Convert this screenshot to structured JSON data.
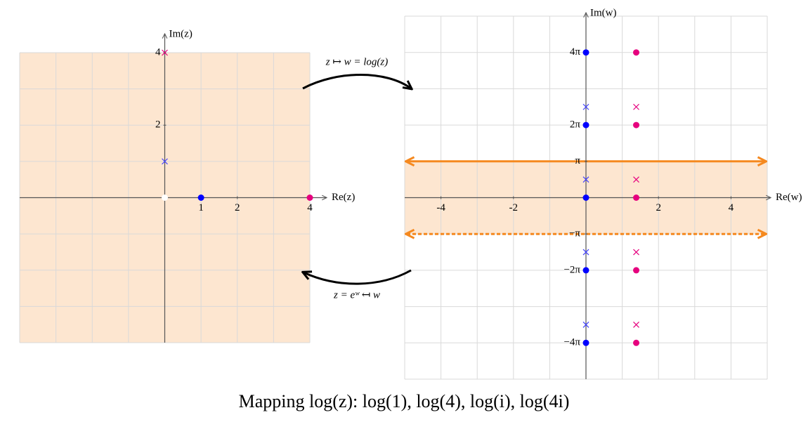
{
  "chart_data": [
    {
      "type": "scatter",
      "axis_labels": {
        "x": "Re(z)",
        "y": "Im(z)"
      },
      "xlim": [
        -4,
        4
      ],
      "ylim": [
        -4,
        4
      ],
      "xticks": [
        1,
        2,
        4
      ],
      "yticks": [
        2,
        4
      ],
      "xgrid": [
        -4,
        -3,
        -2,
        -1,
        0,
        1,
        2,
        3,
        4
      ],
      "ygrid": [
        -4,
        -3,
        -2,
        -1,
        0,
        1,
        2,
        3,
        4
      ],
      "band": [
        -4,
        4
      ],
      "band_color": "#fde6d0",
      "series": [
        {
          "color": "#0000ff",
          "marker": "dot",
          "x": [
            1
          ],
          "values": [
            0
          ]
        },
        {
          "color": "#e6007e",
          "marker": "dot",
          "x": [
            4
          ],
          "values": [
            0
          ]
        },
        {
          "color": "#4040ff",
          "marker": "cross",
          "x": [
            0
          ],
          "values": [
            1
          ]
        },
        {
          "color": "#e6007e",
          "marker": "cross",
          "x": [
            0
          ],
          "values": [
            4
          ]
        },
        {
          "color": "#ffffff",
          "marker": "dot",
          "x": [
            0
          ],
          "values": [
            0
          ]
        }
      ]
    },
    {
      "type": "scatter",
      "axis_labels": {
        "x": "Re(w)",
        "y": "Im(w)"
      },
      "xlim": [
        -5,
        5
      ],
      "ylim": [
        -15.708,
        15.708
      ],
      "xticks": [
        -4,
        -2,
        2,
        4
      ],
      "yticks": [
        {
          "value": 12.566,
          "label": "4π"
        },
        {
          "value": 6.283,
          "label": "2π"
        },
        {
          "value": 3.1416,
          "label": "π"
        },
        {
          "value": -3.1416,
          "label": "−π"
        },
        {
          "value": -6.283,
          "label": "−2π"
        },
        {
          "value": -12.566,
          "label": "−4π"
        }
      ],
      "xgrid": [
        -5,
        -4,
        -3,
        -2,
        -1,
        0,
        1,
        2,
        3,
        4,
        5
      ],
      "ygrid": [
        -15.708,
        -12.566,
        -9.425,
        -6.283,
        -3.1416,
        0,
        3.1416,
        6.283,
        9.425,
        12.566,
        15.708
      ],
      "band": [
        -3.1416,
        3.1416
      ],
      "band_color": "#fde6d0",
      "band_line_color": "#f5891f",
      "series": [
        {
          "color": "#0000ff",
          "marker": "dot",
          "x": [
            0,
            0,
            0,
            0,
            0
          ],
          "values": [
            12.566,
            6.283,
            0,
            -6.283,
            -12.566
          ]
        },
        {
          "color": "#e6007e",
          "marker": "dot",
          "x": [
            1.386,
            1.386,
            1.386,
            1.386,
            1.386
          ],
          "values": [
            12.566,
            6.283,
            0,
            -6.283,
            -12.566
          ]
        },
        {
          "color": "#4040ff",
          "marker": "cross",
          "x": [
            0,
            0,
            0,
            0
          ],
          "values": [
            7.854,
            1.571,
            -4.712,
            -10.996
          ]
        },
        {
          "color": "#e6007e",
          "marker": "cross",
          "x": [
            1.386,
            1.386,
            1.386,
            1.386
          ],
          "values": [
            7.854,
            1.571,
            -4.712,
            -10.996
          ]
        }
      ]
    }
  ],
  "annotations": {
    "forward": "z ↦ w = log(z)",
    "backward": "z = eʷ ↤ w"
  },
  "title": "Mapping log(z): log(1), log(4), log(i), log(4i)"
}
